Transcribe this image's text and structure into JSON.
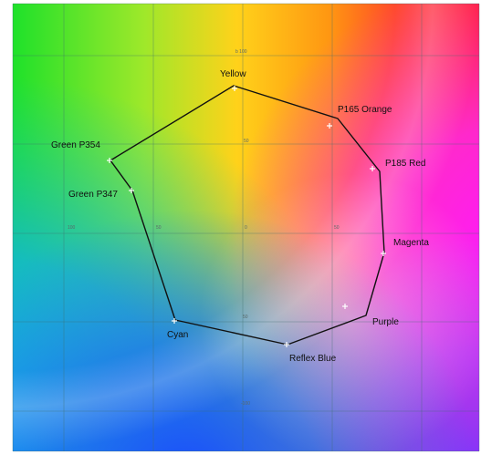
{
  "plot": {
    "axis_ticks": [
      "b 100",
      "50",
      "100",
      "50",
      "0",
      "50",
      "50",
      "-100"
    ],
    "swatches": [
      {
        "name": "Yellow"
      },
      {
        "name": "P165 Orange"
      },
      {
        "name": "P185 Red"
      },
      {
        "name": "Magenta"
      },
      {
        "name": "Purple"
      },
      {
        "name": "Reflex Blue"
      },
      {
        "name": "Cyan"
      },
      {
        "name": "Green P347"
      },
      {
        "name": "Green P354"
      }
    ]
  }
}
